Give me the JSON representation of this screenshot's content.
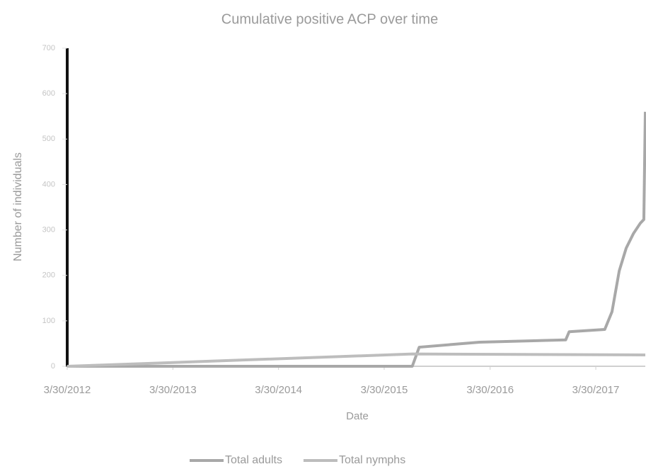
{
  "chart_data": {
    "type": "line",
    "title": "Cumulative positive ACP over time",
    "xlabel": "Date",
    "ylabel": "Number of individuals",
    "xlim": [
      "3/30/2012",
      "9/17/2017"
    ],
    "xticks": [
      "3/30/2012",
      "3/30/2013",
      "3/30/2014",
      "3/30/2015",
      "3/30/2016",
      "3/30/2017"
    ],
    "ylim": [
      0,
      700
    ],
    "yticks": [
      0,
      100,
      200,
      300,
      400,
      500,
      600,
      700
    ],
    "legend": "bottom",
    "series": [
      {
        "name": "Total adults",
        "color": "#a8a8a8",
        "x": [
          "3/30/2012",
          "7/5/2015",
          "7/29/2015",
          "2/23/2016",
          "12/16/2016",
          "12/28/2016",
          "4/30/2017",
          "5/25/2017",
          "6/19/2017",
          "7/13/2017",
          "8/7/2017",
          "8/31/2017",
          "9/12/2017",
          "9/17/2017"
        ],
        "values": [
          0,
          0,
          42,
          53,
          58,
          76,
          81,
          120,
          210,
          260,
          292,
          315,
          323,
          560
        ]
      },
      {
        "name": "Total nymphs",
        "color": "#bdbdbd",
        "x": [
          "3/30/2012",
          "7/5/2015",
          "9/17/2017"
        ],
        "values": [
          0,
          27,
          25
        ]
      }
    ]
  }
}
